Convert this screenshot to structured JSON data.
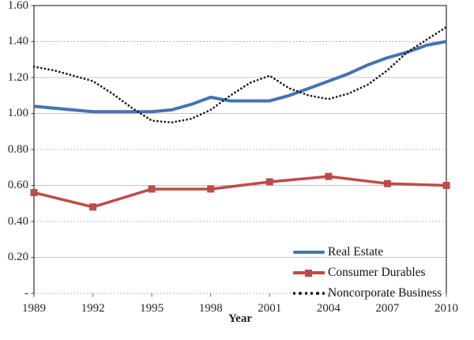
{
  "chart_data": {
    "type": "line",
    "xlabel": "Year",
    "ylabel": "",
    "xlim": [
      1989,
      2010
    ],
    "ylim": [
      0,
      1.6
    ],
    "x_ticks": [
      1989,
      1992,
      1995,
      1998,
      2001,
      2004,
      2007,
      2010
    ],
    "y_ticks": [
      0,
      0.2,
      0.4,
      0.6,
      0.8,
      1.0,
      1.2,
      1.4,
      1.6
    ],
    "y_tick_labels": [
      "-",
      "0.20",
      "0.40",
      "0.60",
      "0.80",
      "1.00",
      "1.20",
      "1.40",
      "1.60"
    ],
    "grid": true,
    "legend_position": "inside-bottom-right",
    "colors": {
      "real_estate": "#4573B4",
      "consumer_durables": "#BE4B48",
      "noncorporate_business": "#1B1B1B",
      "gridline_solid": "#C4C4C4",
      "gridline_dotted": "#9E9E9E",
      "axis_border": "#3D3D3D"
    },
    "series": [
      {
        "name": "Real Estate",
        "color": "#4573B4",
        "line_style": "solid",
        "line_width": 4,
        "x": [
          1989,
          1990,
          1991,
          1992,
          1993,
          1994,
          1995,
          1996,
          1997,
          1998,
          1999,
          2000,
          2001,
          2002,
          2003,
          2004,
          2005,
          2006,
          2007,
          2008,
          2009,
          2010
        ],
        "values": [
          1.04,
          1.03,
          1.02,
          1.01,
          1.01,
          1.01,
          1.01,
          1.02,
          1.05,
          1.09,
          1.07,
          1.07,
          1.07,
          1.1,
          1.14,
          1.18,
          1.22,
          1.27,
          1.31,
          1.34,
          1.38,
          1.4
        ]
      },
      {
        "name": "Consumer Durables",
        "color": "#BE4B48",
        "line_style": "solid",
        "line_width": 3.5,
        "marker": "square",
        "marker_size": 9,
        "x": [
          1989,
          1992,
          1995,
          1998,
          2001,
          2004,
          2007,
          2010
        ],
        "values": [
          0.56,
          0.48,
          0.58,
          0.58,
          0.62,
          0.65,
          0.61,
          0.6
        ]
      },
      {
        "name": "Noncorporate Business",
        "color": "#1B1B1B",
        "line_style": "dotted",
        "line_width": 2.7,
        "x": [
          1989,
          1990,
          1991,
          1992,
          1993,
          1994,
          1995,
          1996,
          1997,
          1998,
          1999,
          2000,
          2001,
          2002,
          2003,
          2004,
          2005,
          2006,
          2007,
          2008,
          2009,
          2010
        ],
        "values": [
          1.26,
          1.24,
          1.21,
          1.18,
          1.11,
          1.03,
          0.96,
          0.95,
          0.97,
          1.02,
          1.1,
          1.17,
          1.21,
          1.14,
          1.1,
          1.08,
          1.11,
          1.16,
          1.24,
          1.34,
          1.41,
          1.48
        ]
      }
    ]
  }
}
